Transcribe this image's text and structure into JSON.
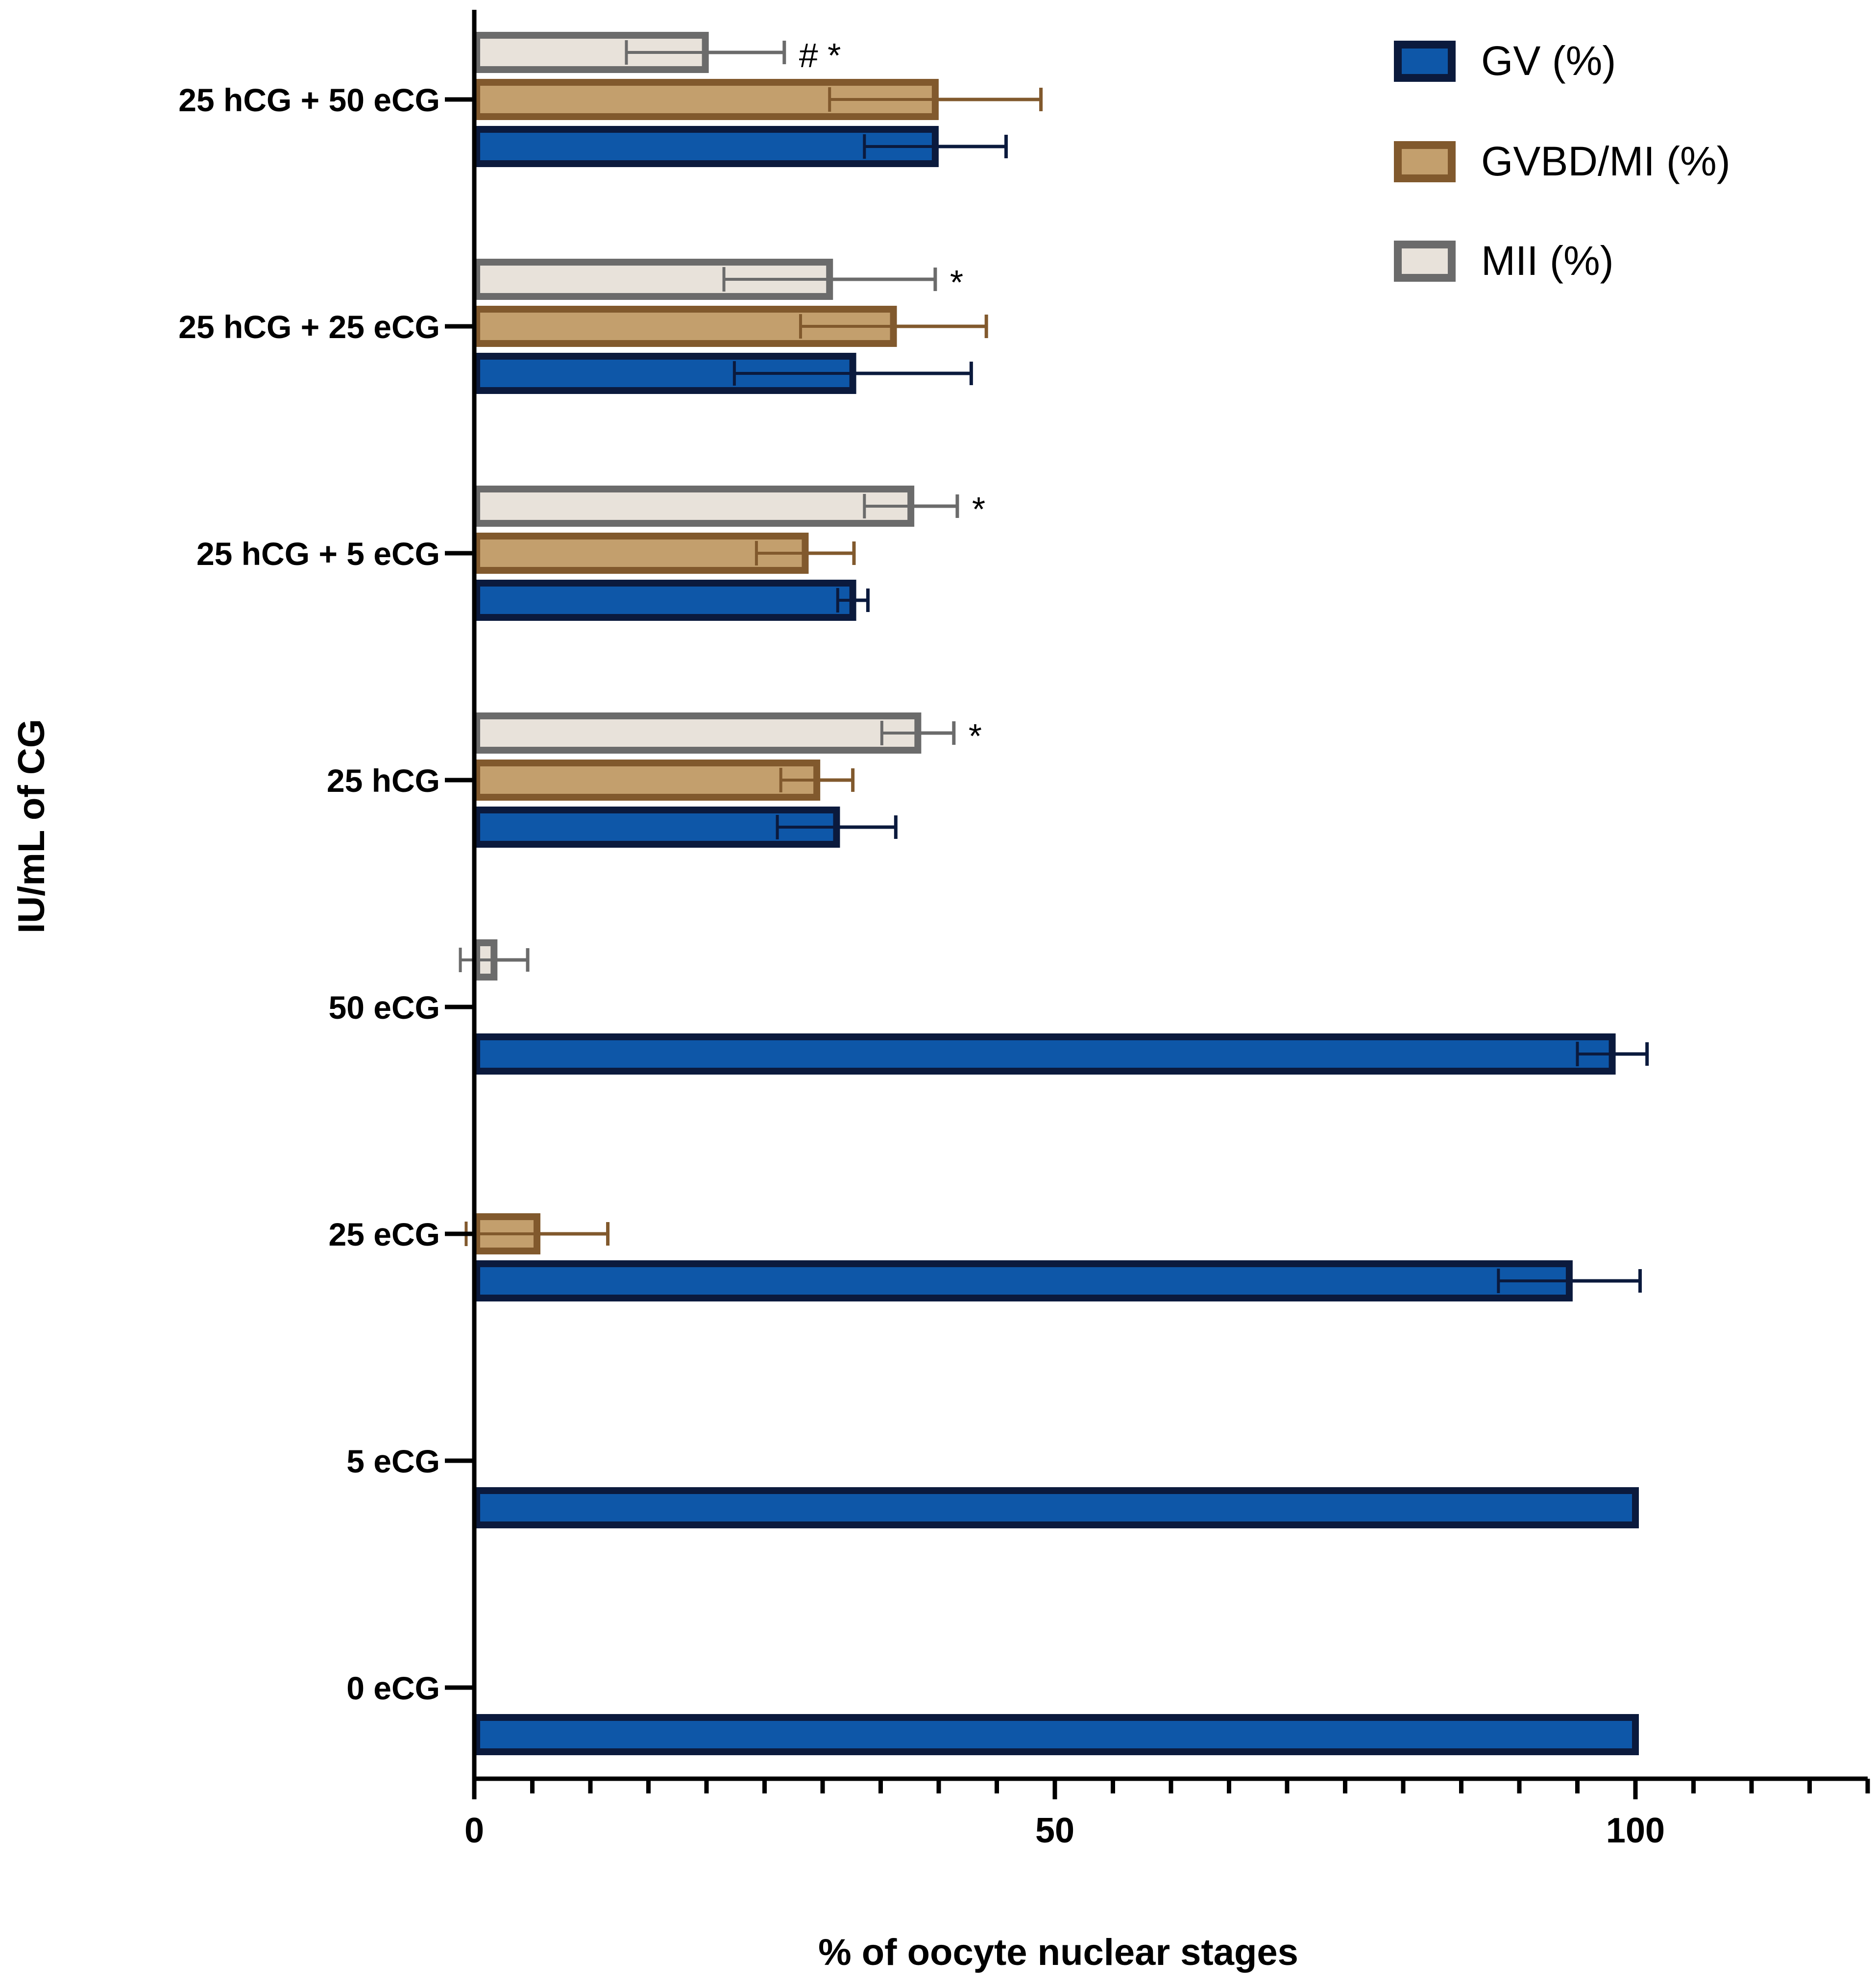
{
  "chart_data": {
    "type": "bar",
    "orientation": "horizontal",
    "title": "",
    "xlabel": "% of oocyte nuclear stages",
    "ylabel": "IU/mL of CG",
    "xlim": [
      0,
      120
    ],
    "x_major_ticks": [
      0,
      50,
      100
    ],
    "x_minor_step": 5,
    "grid": false,
    "legend_position": "top-right",
    "categories": [
      "25 hCG + 50 eCG",
      "25 hCG + 25 eCG",
      "25 hCG + 5 eCG",
      "25 hCG",
      "50 eCG",
      "25 eCG",
      "5 eCG",
      "0 eCG"
    ],
    "series": [
      {
        "name": "GV (%)",
        "key": "gv",
        "fill": "#0e57a8",
        "stroke": "#0b1a3d",
        "values": [
          39.7,
          32.6,
          32.6,
          31.2,
          98.0,
          94.3,
          100,
          100
        ],
        "errors": [
          6.1,
          10.2,
          1.3,
          5.1,
          3.0,
          6.1,
          0,
          0
        ],
        "sem": [
          6.1,
          10.2,
          1.3,
          5.1,
          3.0,
          6.1,
          0,
          0
        ],
        "annotations": [
          "",
          "",
          "",
          "",
          "",
          "",
          "",
          ""
        ]
      },
      {
        "name": "GVBD/MI (%)",
        "key": "gvbd",
        "fill": "#c39f6d",
        "stroke": "#81592d",
        "values": [
          39.7,
          36.1,
          28.5,
          29.5,
          0,
          5.4,
          0,
          0
        ],
        "errors": [
          9.1,
          8.0,
          4.2,
          3.1,
          0,
          6.1,
          0,
          0
        ],
        "sem": [
          9.1,
          8.0,
          4.2,
          3.1,
          0,
          6.1,
          0,
          0
        ],
        "annotations": [
          "",
          "",
          "",
          "",
          "",
          "",
          "",
          ""
        ]
      },
      {
        "name": "MII (%)",
        "key": "mii",
        "fill": "#e8e2da",
        "stroke": "#6b6b6b",
        "values": [
          19.9,
          30.6,
          37.6,
          38.2,
          1.7,
          0,
          0,
          0
        ],
        "errors": [
          6.8,
          9.1,
          4.0,
          3.1,
          2.9,
          0,
          0,
          0
        ],
        "sem": [
          6.8,
          9.1,
          4.0,
          3.1,
          2.9,
          0,
          0,
          0
        ],
        "annotations": [
          "# *",
          "*",
          "*",
          "*",
          "",
          "",
          "",
          ""
        ]
      }
    ]
  }
}
